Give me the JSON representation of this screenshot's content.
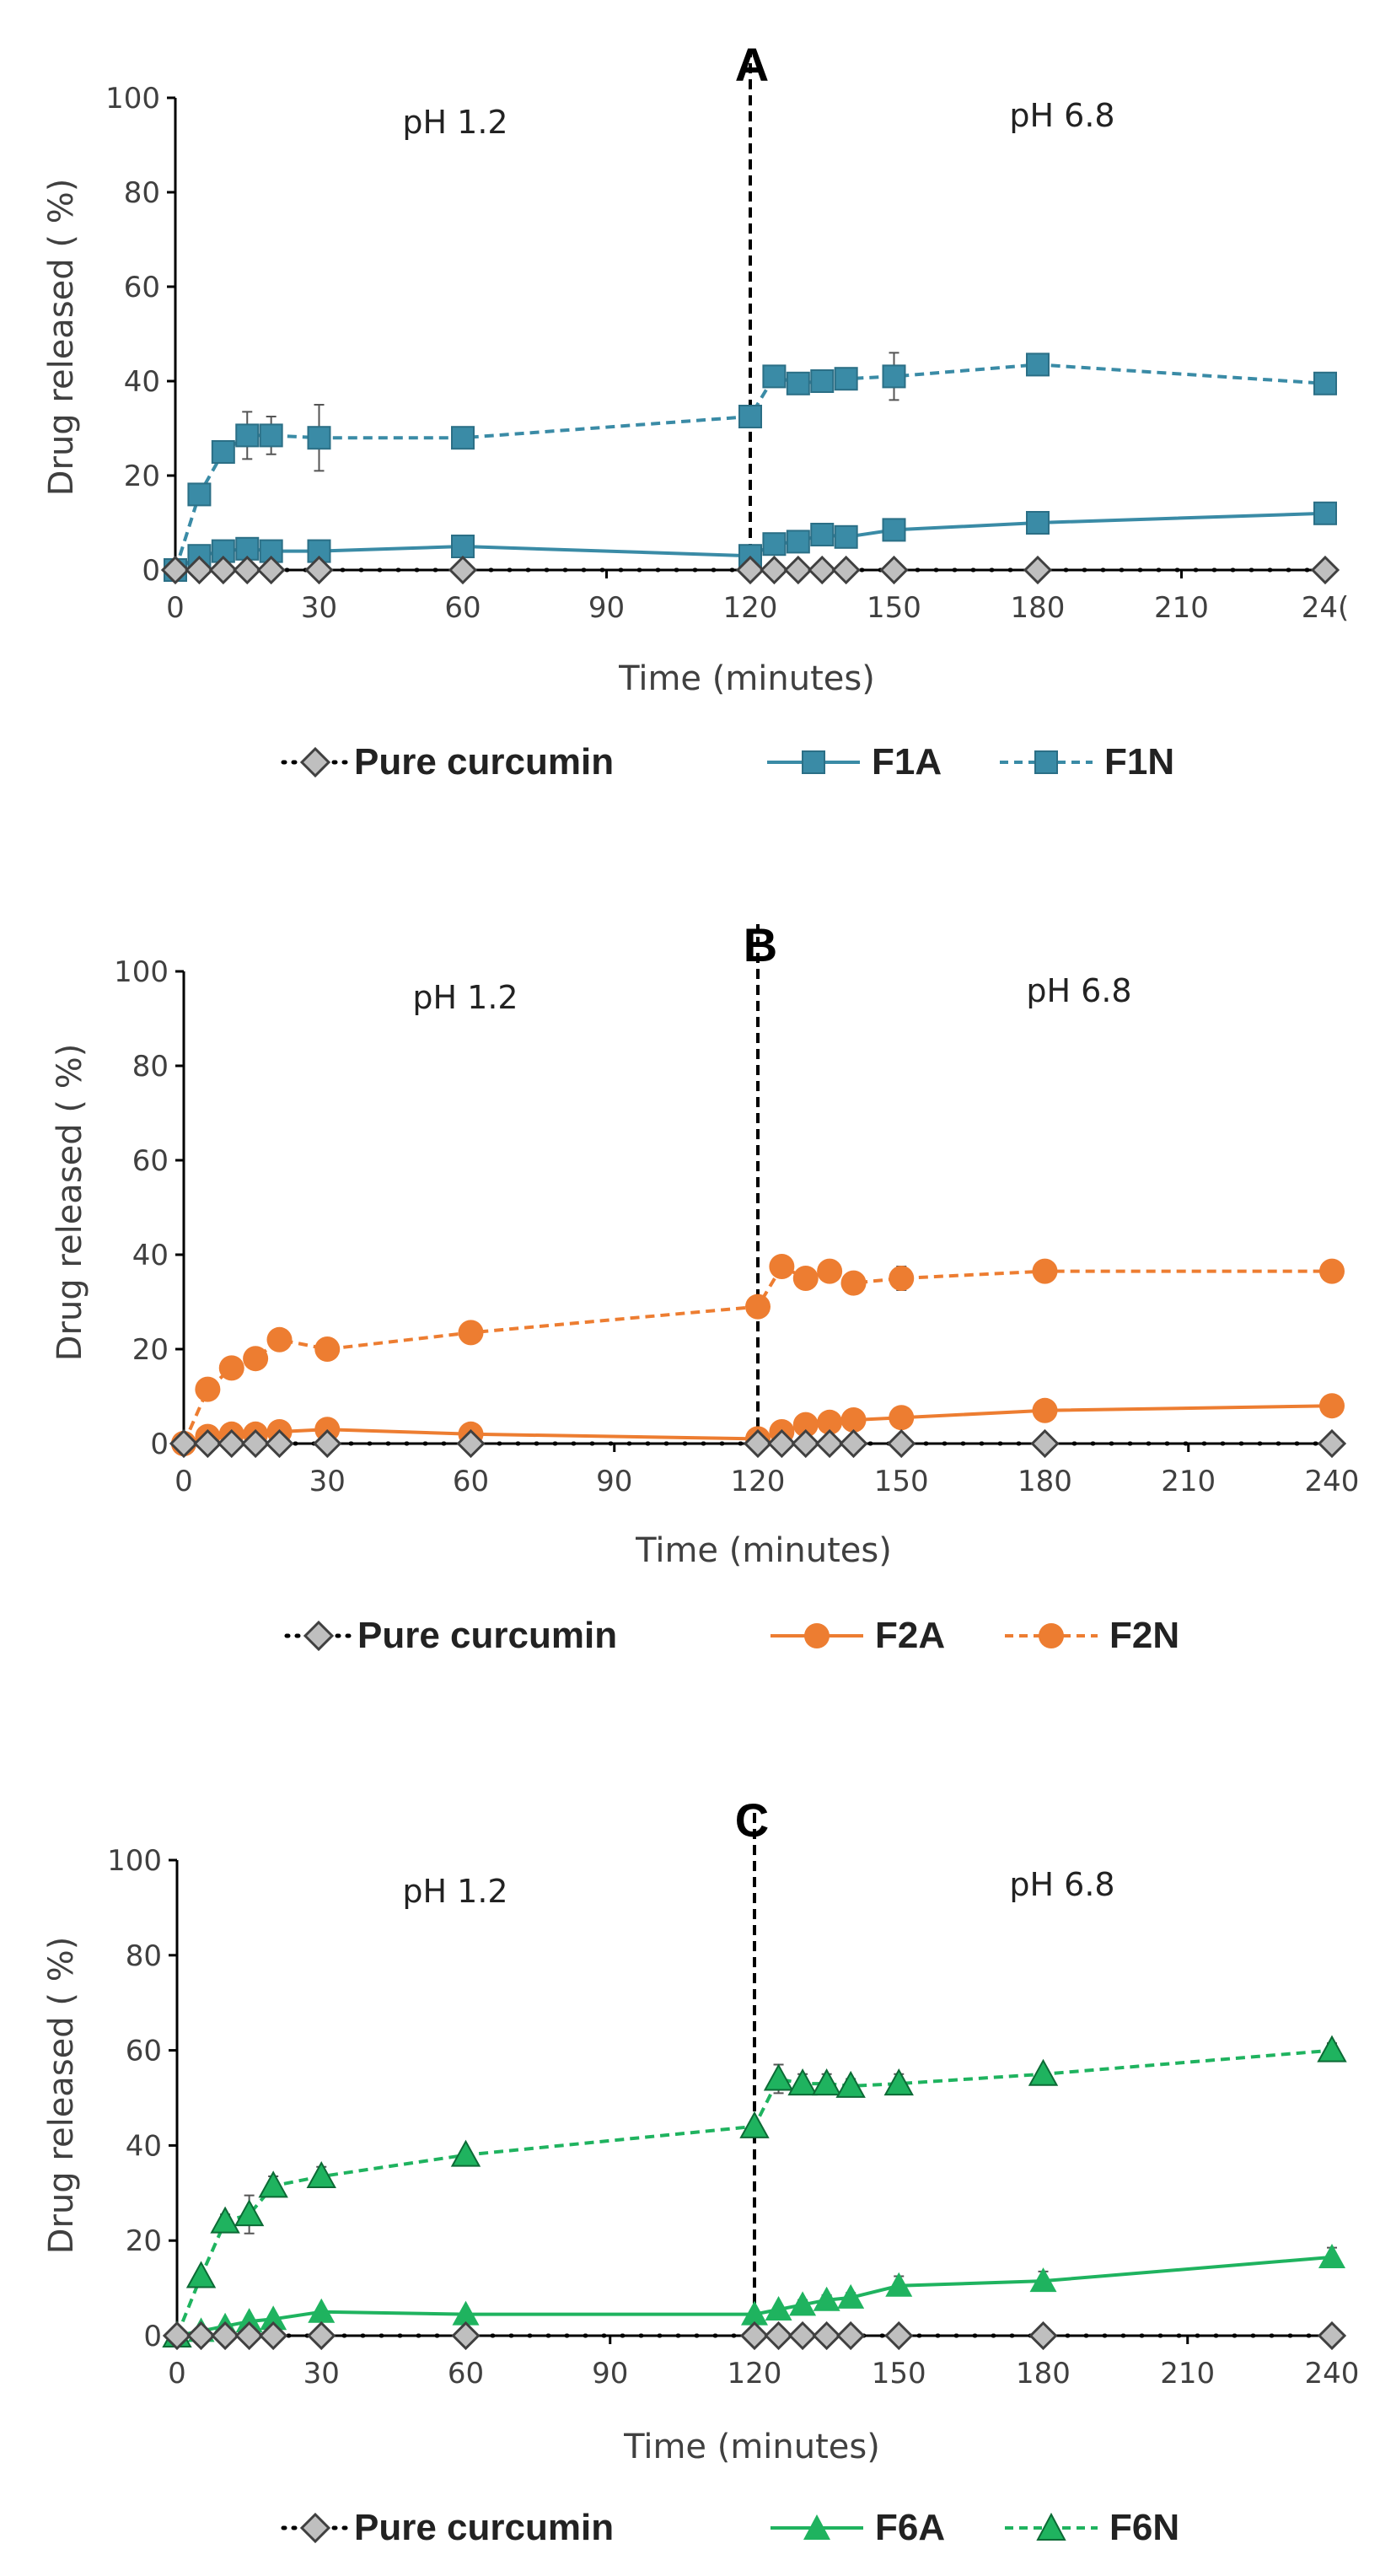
{
  "figure": {
    "common": {
      "xlabel": "Time (minutes)",
      "ylabel": "Drug released ( %)",
      "x_ticks": [
        "0",
        "30",
        "60",
        "90",
        "120",
        "150",
        "180",
        "210",
        "240"
      ],
      "y_ticks": [
        "0",
        "20",
        "40",
        "60",
        "80",
        "100"
      ],
      "phase_left": "pH 1.2",
      "phase_right": "pH 6.8"
    }
  },
  "colors": {
    "blue": "#3a8ba6",
    "orange": "#ed7d31",
    "green": "#1fb35f",
    "gray_marker": "#bfbfbf",
    "axis": "#000000"
  },
  "chart_data": [
    {
      "panel": "A",
      "type": "line",
      "xlabel": "Time (minutes)",
      "ylabel": "Drug released ( %)",
      "xlim": [
        0,
        240
      ],
      "ylim": [
        0,
        100
      ],
      "x_tick_labels": [
        "0",
        "30",
        "60",
        "90",
        "120",
        "150",
        "180",
        "210",
        "24("
      ],
      "ph_change_at": 120,
      "annotations": [
        "pH 1.2",
        "pH 6.8"
      ],
      "series": [
        {
          "name": "Pure curcumin",
          "marker": "diamond",
          "line": "dotted",
          "color": "#bfbfbf",
          "x": [
            0,
            5,
            10,
            15,
            20,
            30,
            60,
            120,
            125,
            130,
            135,
            140,
            150,
            180,
            240
          ],
          "y": [
            0,
            0,
            0,
            0,
            0,
            0,
            0,
            0,
            0,
            0,
            0,
            0,
            0,
            0,
            0
          ]
        },
        {
          "name": "F1A",
          "marker": "square",
          "line": "solid",
          "color": "#3a8ba6",
          "x": [
            0,
            5,
            10,
            15,
            20,
            30,
            60,
            120,
            125,
            130,
            135,
            140,
            150,
            180,
            240
          ],
          "y": [
            0,
            3,
            4,
            4.5,
            4,
            4,
            5,
            3,
            5.5,
            6,
            7.5,
            7,
            8.5,
            10,
            12
          ],
          "err": [
            0,
            0,
            0,
            0,
            0,
            0,
            0,
            0,
            0,
            0,
            0,
            0,
            0,
            0,
            0
          ]
        },
        {
          "name": "F1N",
          "marker": "square",
          "line": "dashed",
          "color": "#3a8ba6",
          "x": [
            0,
            5,
            10,
            15,
            20,
            30,
            60,
            120,
            125,
            130,
            135,
            140,
            150,
            180,
            240
          ],
          "y": [
            0,
            16,
            25,
            28.5,
            28.5,
            28,
            28,
            32.5,
            41,
            39.5,
            40,
            40.5,
            41,
            43.5,
            39.5
          ],
          "err": [
            0,
            0,
            0,
            5,
            4,
            7,
            2,
            2,
            2,
            1,
            1,
            1,
            5,
            1,
            1.5
          ]
        }
      ]
    },
    {
      "panel": "B",
      "type": "line",
      "xlabel": "Time (minutes)",
      "ylabel": "Drug released ( %)",
      "xlim": [
        0,
        240
      ],
      "ylim": [
        0,
        100
      ],
      "x_tick_labels": [
        "0",
        "30",
        "60",
        "90",
        "120",
        "150",
        "180",
        "210",
        "240"
      ],
      "ph_change_at": 120,
      "annotations": [
        "pH 1.2",
        "pH 6.8"
      ],
      "series": [
        {
          "name": "Pure curcumin",
          "marker": "diamond",
          "line": "dotted",
          "color": "#bfbfbf",
          "x": [
            0,
            5,
            10,
            15,
            20,
            30,
            60,
            120,
            125,
            130,
            135,
            140,
            150,
            180,
            240
          ],
          "y": [
            0,
            0,
            0,
            0,
            0,
            0,
            0,
            0,
            0,
            0,
            0,
            0,
            0,
            0,
            0
          ]
        },
        {
          "name": "F2A",
          "marker": "circle",
          "line": "solid",
          "color": "#ed7d31",
          "x": [
            0,
            5,
            10,
            15,
            20,
            30,
            60,
            120,
            125,
            130,
            135,
            140,
            150,
            180,
            240
          ],
          "y": [
            0,
            1.5,
            2,
            2,
            2.5,
            3,
            2,
            1,
            2.5,
            4,
            4.5,
            5,
            5.5,
            7,
            8
          ],
          "err": [
            0,
            0,
            0,
            0,
            0,
            0,
            0,
            0,
            0,
            0,
            0,
            0,
            0,
            0,
            0
          ]
        },
        {
          "name": "F2N",
          "marker": "circle",
          "line": "dashed",
          "color": "#ed7d31",
          "x": [
            0,
            5,
            10,
            15,
            20,
            30,
            60,
            120,
            125,
            130,
            135,
            140,
            150,
            180,
            240
          ],
          "y": [
            0,
            11.5,
            16,
            18,
            22,
            20,
            23.5,
            29,
            37.5,
            35,
            36.5,
            34,
            35,
            36.5,
            36.5
          ],
          "err": [
            0,
            0,
            0,
            1,
            1,
            1,
            1,
            1.5,
            1,
            1,
            1,
            1,
            2.5,
            1,
            1
          ]
        }
      ]
    },
    {
      "panel": "C",
      "type": "line",
      "xlabel": "Time (minutes)",
      "ylabel": "Drug released ( %)",
      "xlim": [
        0,
        240
      ],
      "ylim": [
        0,
        100
      ],
      "x_tick_labels": [
        "0",
        "30",
        "60",
        "90",
        "120",
        "150",
        "180",
        "210",
        "240"
      ],
      "ph_change_at": 120,
      "annotations": [
        "pH 1.2",
        "pH 6.8"
      ],
      "series": [
        {
          "name": "Pure curcumin",
          "marker": "diamond",
          "line": "dotted",
          "color": "#bfbfbf",
          "x": [
            0,
            5,
            10,
            15,
            20,
            30,
            60,
            120,
            125,
            130,
            135,
            140,
            150,
            180,
            240
          ],
          "y": [
            0,
            0,
            0,
            0,
            0,
            0,
            0,
            0,
            0,
            0,
            0,
            0,
            0,
            0,
            0
          ]
        },
        {
          "name": "F6A",
          "marker": "triangle",
          "line": "solid",
          "color": "#1fb35f",
          "x": [
            0,
            5,
            10,
            15,
            20,
            30,
            60,
            120,
            125,
            130,
            135,
            140,
            150,
            180,
            240
          ],
          "y": [
            0,
            1,
            2,
            3,
            3.5,
            5,
            4.5,
            4.5,
            5.5,
            6.5,
            7.5,
            8,
            10.5,
            11.5,
            16.5
          ],
          "err": [
            0,
            0,
            0,
            0,
            0,
            0,
            0,
            0,
            0,
            1,
            1,
            1,
            2,
            2,
            2
          ]
        },
        {
          "name": "F6N",
          "marker": "triangle",
          "line": "dashed",
          "color": "#1fb35f",
          "x": [
            0,
            5,
            10,
            15,
            20,
            30,
            60,
            120,
            125,
            130,
            135,
            140,
            150,
            180,
            240
          ],
          "y": [
            0,
            12.5,
            24,
            25.5,
            31.5,
            33.5,
            38,
            44,
            54,
            53,
            53,
            52.5,
            53,
            55,
            60
          ],
          "err": [
            0,
            0,
            1.5,
            4,
            2,
            2,
            1,
            1,
            3,
            2,
            2,
            1.5,
            2,
            1,
            1.5
          ]
        }
      ]
    }
  ]
}
